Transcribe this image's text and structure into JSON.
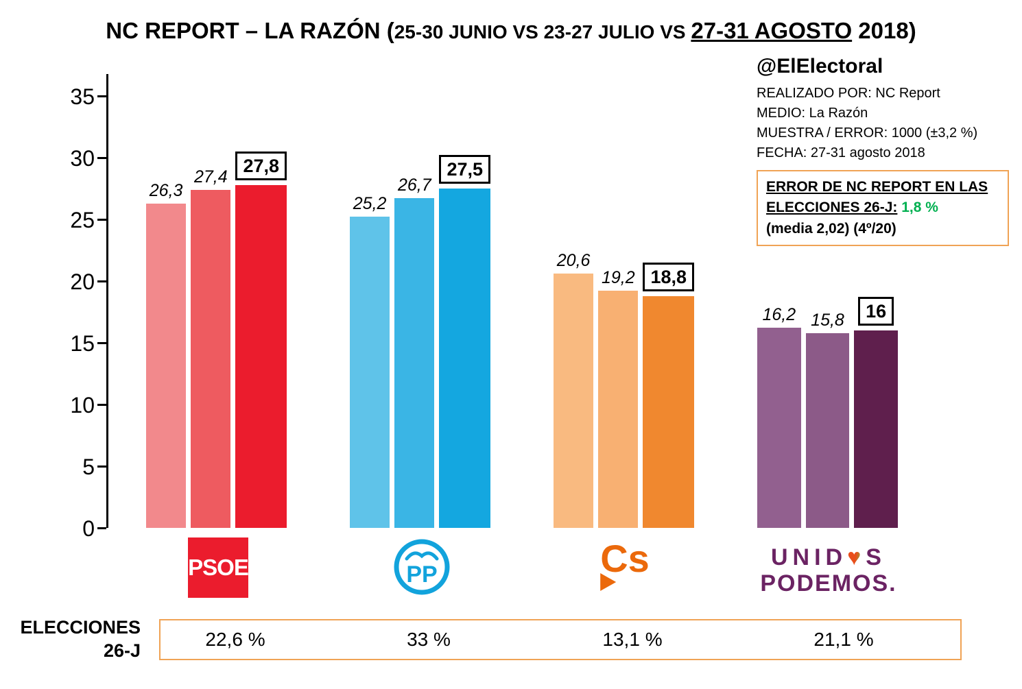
{
  "title": {
    "prefix": "NC REPORT – LA RAZÓN (",
    "mid": "25-30 JUNIO VS 23-27 JULIO VS ",
    "underlined": "27-31 AGOSTO",
    "tail": " 2018)"
  },
  "info": {
    "handle": "@ElElectoral",
    "lines": [
      "REALIZADO POR: NC Report",
      "MEDIO: La Razón",
      "MUESTRA / ERROR: 1000 (±3,2 %)",
      "FECHA: 27-31 agosto 2018"
    ],
    "error_box": {
      "heading": "ERROR DE NC REPORT EN LAS ELECCIONES 26-J:",
      "value": "1,8 %",
      "detail": "(media 2,02) (4º/20)"
    }
  },
  "chart_data": {
    "type": "bar",
    "title": "NC REPORT – LA RAZÓN (25-30 JUNIO VS 23-27 JULIO VS 27-31 AGOSTO 2018)",
    "categories": [
      "PSOE",
      "PP",
      "Cs",
      "UNIDOS PODEMOS"
    ],
    "series": [
      {
        "name": "25-30 junio 2018",
        "values": [
          26.3,
          25.2,
          20.6,
          16.2
        ]
      },
      {
        "name": "23-27 julio 2018",
        "values": [
          27.4,
          26.7,
          19.2,
          15.8
        ]
      },
      {
        "name": "27-31 agosto 2018",
        "values": [
          27.8,
          27.5,
          18.8,
          16.0
        ]
      }
    ],
    "value_labels": [
      [
        "26,3",
        "27,4",
        "27,8"
      ],
      [
        "25,2",
        "26,7",
        "27,5"
      ],
      [
        "20,6",
        "19,2",
        "18,8"
      ],
      [
        "16,2",
        "15,8",
        "16"
      ]
    ],
    "colors": [
      [
        "#F2898C",
        "#EE5B60",
        "#EB1C2D"
      ],
      [
        "#5FC3E9",
        "#3AB5E5",
        "#14A7E0"
      ],
      [
        "#F9BA80",
        "#F8B072",
        "#F0882F"
      ],
      [
        "#92608F",
        "#8C5A88",
        "#5F1F4D"
      ]
    ],
    "ylim": [
      0,
      35
    ],
    "yticks": [
      0,
      5,
      10,
      15,
      20,
      25,
      30,
      35
    ],
    "grid": false,
    "legend": "none",
    "xlabel": "",
    "ylabel": ""
  },
  "logos": {
    "psoe": "PSOE",
    "pp": "PP",
    "cs": "Cs",
    "up_prefix": "UNID",
    "up_heart": "♥",
    "up_suffix": "S",
    "up_line2": "PODEMOS."
  },
  "elections": {
    "label_line1": "ELECCIONES",
    "label_line2": "26-J",
    "values": [
      "22,6 %",
      "33 %",
      "13,1 %",
      "21,1 %"
    ]
  },
  "colors": {
    "accent_orange_border": "#F0A355",
    "error_green": "#00B050",
    "psoe_red": "#EB1C2D",
    "pp_blue": "#12A3DC",
    "cs_orange": "#EB690B",
    "podemos_purple": "#6B2363"
  }
}
